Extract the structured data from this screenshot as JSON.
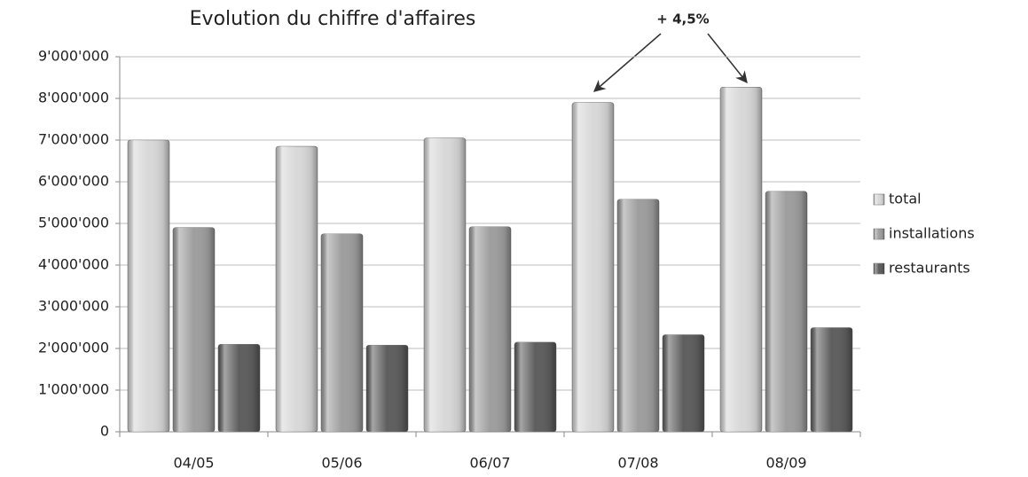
{
  "chart_data": {
    "type": "bar",
    "title": "Evolution du chiffre d'affaires",
    "annotation": "+ 4,5%",
    "categories": [
      "04/05",
      "05/06",
      "06/07",
      "07/08",
      "08/09"
    ],
    "series": [
      {
        "name": "total",
        "color": "#d8d8d8",
        "values": [
          7000000,
          6850000,
          7050000,
          7900000,
          8270000
        ]
      },
      {
        "name": "installations",
        "color": "#9e9e9e",
        "values": [
          4900000,
          4750000,
          4920000,
          5580000,
          5770000
        ]
      },
      {
        "name": "restaurants",
        "color": "#5e5e5e",
        "values": [
          2100000,
          2080000,
          2150000,
          2330000,
          2500000
        ]
      }
    ],
    "ylim": [
      0,
      9000000
    ],
    "yticks": [
      0,
      {
        "value": 1000000,
        "label": "1'000'000"
      },
      {
        "value": 2000000,
        "label": "2'000'000"
      },
      {
        "value": 3000000,
        "label": "3'000'000"
      },
      {
        "value": 4000000,
        "label": "4'000'000"
      },
      {
        "value": 5000000,
        "label": "5'000'000"
      },
      {
        "value": 6000000,
        "label": "6'000'000"
      },
      {
        "value": 7000000,
        "label": "7'000'000"
      },
      {
        "value": 8000000,
        "label": "8'000'000"
      },
      {
        "value": 9000000,
        "label": "9'000'000"
      }
    ],
    "grid": true,
    "legend": "right"
  }
}
